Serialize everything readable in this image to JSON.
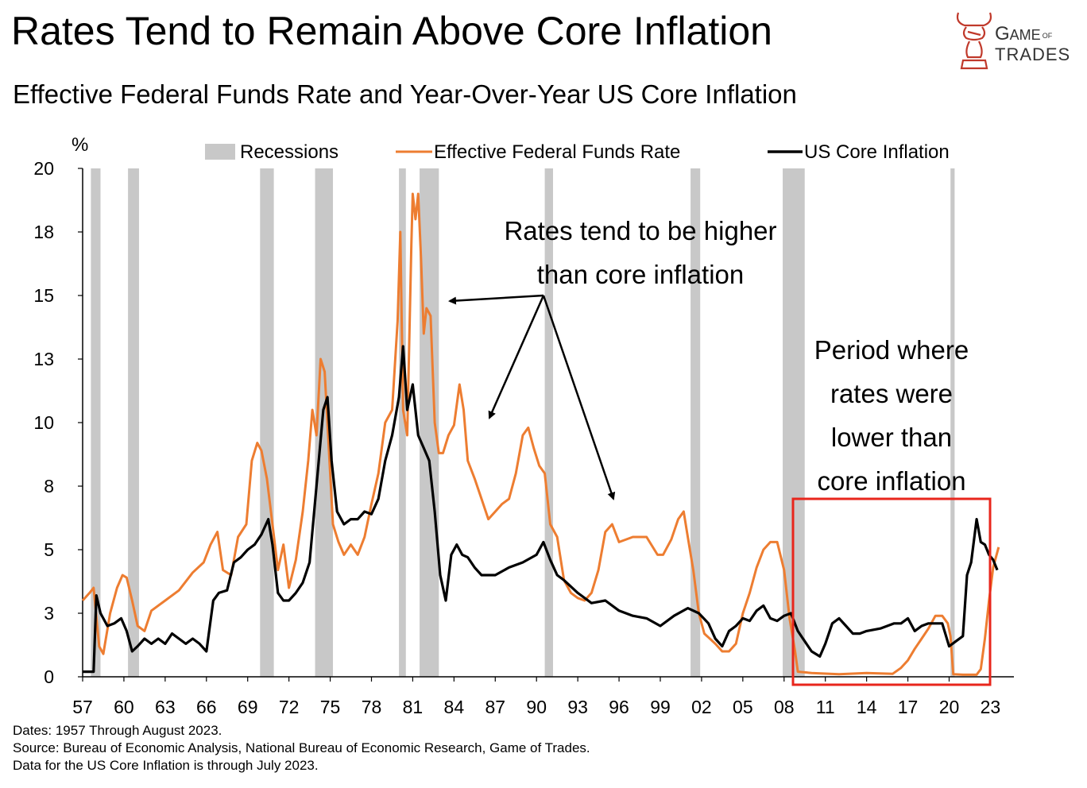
{
  "title": "Rates Tend to Remain Above Core Inflation",
  "subtitle": "Effective Federal Funds Rate and Year-Over-Year US Core Inflation",
  "logo": {
    "line1_big": "G",
    "line1_rest": "AME",
    "line1_small": "OF",
    "line2": "TRADES",
    "icon": "bull-bishop-logo-icon"
  },
  "footer": {
    "dates": "Dates: 1957 Through August 2023.",
    "source": "Source: Bureau of Economic Analysis, National Bureau of Economic Research, Game of Trades.",
    "note": "Data for the US Core Inflation is through July 2023."
  },
  "chart_data": {
    "type": "line",
    "ylabel": "%",
    "ylim": [
      0,
      20
    ],
    "y_ticks": [
      "0",
      "3",
      "5",
      "8",
      "10",
      "13",
      "15",
      "18",
      "20"
    ],
    "xlim": [
      1957,
      2023.9
    ],
    "x_ticks": [
      "57",
      "60",
      "63",
      "66",
      "69",
      "72",
      "75",
      "78",
      "81",
      "84",
      "87",
      "90",
      "93",
      "96",
      "99",
      "02",
      "05",
      "08",
      "11",
      "14",
      "17",
      "20",
      "23"
    ],
    "legend": {
      "recessions": "Recessions",
      "fed_funds": "Effective Federal Funds Rate",
      "core": "US Core Inflation"
    },
    "colors": {
      "fed_funds": "#ED7D31",
      "core": "#000000",
      "recession": "#C8C8C8",
      "highlight": "#E8261C"
    },
    "recessions": [
      [
        1957.6,
        1958.3
      ],
      [
        1960.3,
        1961.1
      ],
      [
        1969.9,
        1970.9
      ],
      [
        1973.9,
        1975.2
      ],
      [
        1980.0,
        1980.5
      ],
      [
        1981.5,
        1982.9
      ],
      [
        1990.6,
        1991.2
      ],
      [
        2001.2,
        2001.9
      ],
      [
        2007.9,
        2009.5
      ],
      [
        2020.1,
        2020.4
      ]
    ],
    "series": [
      {
        "name": "Effective Federal Funds Rate",
        "x": [
          1957.0,
          1957.5,
          1957.8,
          1958.2,
          1958.5,
          1959.0,
          1959.5,
          1959.9,
          1960.2,
          1960.6,
          1961.0,
          1961.5,
          1962.0,
          1963.0,
          1964.0,
          1965.0,
          1965.8,
          1966.3,
          1966.8,
          1967.2,
          1967.8,
          1968.3,
          1968.9,
          1969.3,
          1969.7,
          1970.0,
          1970.4,
          1970.8,
          1971.2,
          1971.6,
          1972.0,
          1972.5,
          1973.0,
          1973.4,
          1973.7,
          1974.0,
          1974.3,
          1974.6,
          1974.9,
          1975.2,
          1975.6,
          1976.0,
          1976.5,
          1977.0,
          1977.5,
          1978.0,
          1978.5,
          1979.0,
          1979.5,
          1979.9,
          1980.1,
          1980.3,
          1980.6,
          1980.9,
          1981.0,
          1981.2,
          1981.4,
          1981.6,
          1981.8,
          1982.0,
          1982.3,
          1982.6,
          1982.9,
          1983.2,
          1983.6,
          1984.0,
          1984.4,
          1984.7,
          1985.0,
          1985.5,
          1986.0,
          1986.5,
          1987.0,
          1987.5,
          1988.0,
          1988.5,
          1989.0,
          1989.4,
          1989.8,
          1990.2,
          1990.6,
          1991.0,
          1991.5,
          1992.0,
          1992.5,
          1993.0,
          1993.5,
          1994.0,
          1994.5,
          1995.0,
          1995.5,
          1996.0,
          1997.0,
          1998.0,
          1998.8,
          1999.2,
          1999.8,
          2000.3,
          2000.7,
          2001.0,
          2001.4,
          2001.8,
          2002.2,
          2003.0,
          2003.5,
          2004.0,
          2004.5,
          2005.0,
          2005.5,
          2006.0,
          2006.5,
          2007.0,
          2007.5,
          2008.0,
          2008.4,
          2008.8,
          2009.0,
          2010.0,
          2012.0,
          2014.0,
          2015.9,
          2016.5,
          2017.0,
          2017.5,
          2018.0,
          2018.5,
          2019.0,
          2019.5,
          2019.9,
          2020.1,
          2020.3,
          2021.0,
          2022.0,
          2022.3,
          2022.6,
          2022.9,
          2023.2,
          2023.6
        ],
        "values": [
          3.0,
          3.3,
          3.5,
          1.2,
          0.9,
          2.5,
          3.5,
          4.0,
          3.9,
          3.0,
          2.0,
          1.8,
          2.6,
          3.0,
          3.4,
          4.1,
          4.5,
          5.2,
          5.7,
          4.2,
          4.0,
          5.5,
          6.0,
          8.5,
          9.2,
          8.9,
          7.8,
          6.0,
          4.2,
          5.2,
          3.5,
          4.6,
          6.5,
          8.5,
          10.5,
          9.5,
          12.5,
          12.0,
          9.0,
          6.0,
          5.3,
          4.8,
          5.2,
          4.8,
          5.5,
          6.8,
          8.0,
          10.0,
          10.5,
          14.0,
          17.5,
          10.5,
          9.5,
          17.0,
          19.0,
          18.0,
          19.0,
          16.5,
          13.5,
          14.5,
          14.2,
          10.0,
          8.8,
          8.8,
          9.5,
          9.9,
          11.5,
          10.5,
          8.5,
          7.8,
          7.0,
          6.2,
          6.5,
          6.8,
          7.0,
          8.0,
          9.5,
          9.8,
          9.0,
          8.3,
          8.0,
          6.0,
          5.5,
          3.8,
          3.3,
          3.1,
          3.0,
          3.3,
          4.2,
          5.7,
          6.0,
          5.3,
          5.5,
          5.5,
          4.8,
          4.8,
          5.4,
          6.2,
          6.5,
          5.5,
          4.2,
          2.5,
          1.7,
          1.3,
          1.0,
          1.0,
          1.3,
          2.5,
          3.3,
          4.3,
          5.0,
          5.3,
          5.3,
          4.2,
          2.3,
          1.0,
          0.2,
          0.15,
          0.1,
          0.15,
          0.12,
          0.35,
          0.65,
          1.1,
          1.5,
          1.9,
          2.4,
          2.4,
          2.1,
          1.6,
          0.1,
          0.08,
          0.08,
          0.3,
          1.5,
          3.0,
          4.3,
          5.1
        ]
      },
      {
        "name": "US Core Inflation",
        "x": [
          1957.0,
          1957.8,
          1958.0,
          1958.3,
          1958.8,
          1959.3,
          1959.8,
          1960.2,
          1960.6,
          1961.0,
          1961.5,
          1962.0,
          1962.5,
          1963.0,
          1963.5,
          1964.0,
          1964.5,
          1965.0,
          1965.5,
          1966.0,
          1966.5,
          1966.9,
          1967.5,
          1968.0,
          1968.5,
          1969.0,
          1969.5,
          1970.0,
          1970.5,
          1970.8,
          1971.2,
          1971.6,
          1972.0,
          1972.5,
          1973.0,
          1973.5,
          1974.0,
          1974.5,
          1974.8,
          1975.1,
          1975.5,
          1976.0,
          1976.5,
          1977.0,
          1977.5,
          1978.0,
          1978.5,
          1979.0,
          1979.5,
          1980.0,
          1980.3,
          1980.6,
          1981.0,
          1981.4,
          1981.8,
          1982.2,
          1982.6,
          1983.0,
          1983.4,
          1983.8,
          1984.2,
          1984.6,
          1985.0,
          1985.5,
          1986.0,
          1987.0,
          1988.0,
          1989.0,
          1990.0,
          1990.5,
          1991.0,
          1991.5,
          1992.0,
          1993.0,
          1994.0,
          1995.0,
          1996.0,
          1997.0,
          1998.0,
          1999.0,
          2000.0,
          2001.0,
          2001.8,
          2002.5,
          2003.0,
          2003.5,
          2004.0,
          2004.5,
          2005.0,
          2005.5,
          2006.0,
          2006.5,
          2007.0,
          2007.5,
          2008.0,
          2008.5,
          2009.0,
          2009.5,
          2010.0,
          2010.6,
          2011.0,
          2011.5,
          2012.0,
          2012.5,
          2013.0,
          2013.5,
          2014.0,
          2015.0,
          2016.0,
          2016.5,
          2017.0,
          2017.5,
          2018.0,
          2018.5,
          2019.0,
          2019.5,
          2020.0,
          2020.5,
          2021.0,
          2021.3,
          2021.6,
          2022.0,
          2022.3,
          2022.6,
          2022.9,
          2023.2,
          2023.5
        ],
        "values": [
          0.2,
          0.2,
          3.2,
          2.5,
          2.0,
          2.1,
          2.3,
          1.8,
          1.0,
          1.2,
          1.5,
          1.3,
          1.5,
          1.3,
          1.7,
          1.5,
          1.3,
          1.5,
          1.3,
          1.0,
          3.0,
          3.3,
          3.4,
          4.5,
          4.7,
          5.0,
          5.2,
          5.6,
          6.2,
          5.2,
          3.3,
          3.0,
          3.0,
          3.3,
          3.7,
          4.5,
          7.5,
          10.5,
          11.0,
          8.5,
          6.5,
          6.0,
          6.2,
          6.2,
          6.5,
          6.4,
          7.0,
          8.5,
          9.5,
          11.0,
          13.0,
          10.5,
          11.5,
          9.5,
          9.0,
          8.5,
          6.5,
          4.0,
          3.0,
          4.8,
          5.2,
          4.8,
          4.7,
          4.3,
          4.0,
          4.0,
          4.3,
          4.5,
          4.8,
          5.3,
          4.6,
          4.0,
          3.8,
          3.3,
          2.9,
          3.0,
          2.6,
          2.4,
          2.3,
          2.0,
          2.4,
          2.7,
          2.5,
          2.1,
          1.5,
          1.2,
          1.8,
          2.0,
          2.3,
          2.2,
          2.6,
          2.8,
          2.3,
          2.2,
          2.4,
          2.5,
          1.8,
          1.4,
          1.0,
          0.8,
          1.3,
          2.1,
          2.3,
          2.0,
          1.7,
          1.7,
          1.8,
          1.9,
          2.1,
          2.1,
          2.3,
          1.8,
          2.0,
          2.1,
          2.1,
          2.1,
          1.2,
          1.4,
          1.6,
          4.0,
          4.5,
          6.2,
          5.3,
          5.2,
          4.8,
          4.6,
          4.2
        ]
      }
    ],
    "annotations": {
      "rates_higher": [
        "Rates tend to be higher",
        "than core inflation"
      ],
      "period_lower": [
        "Period where",
        "rates were",
        "lower than",
        "core inflation"
      ],
      "highlight_range": {
        "x": [
          2008.3,
          2023.4
        ],
        "y": [
          0,
          7.0
        ]
      }
    }
  }
}
